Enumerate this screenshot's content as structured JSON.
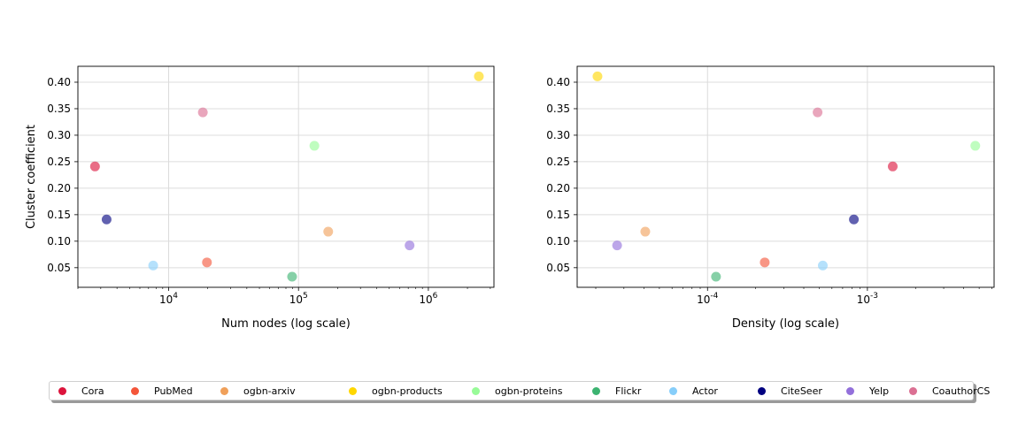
{
  "chart_data": [
    {
      "type": "scatter",
      "xlabel": "Num nodes (log scale)",
      "ylabel": "Cluster coefficient",
      "xscale": "log",
      "xlim": [
        2000,
        3200000
      ],
      "ylim": [
        0.013,
        0.43
      ],
      "xticks": [
        {
          "value": 10000,
          "label": "10^4"
        },
        {
          "value": 100000,
          "label": "10^5"
        },
        {
          "value": 1000000,
          "label": "10^6"
        }
      ],
      "yticks": [
        0.05,
        0.1,
        0.15,
        0.2,
        0.25,
        0.3,
        0.35,
        0.4
      ],
      "grid": true,
      "points": [
        {
          "series": "Cora",
          "x": 2708,
          "y": 0.241
        },
        {
          "series": "PubMed",
          "x": 19717,
          "y": 0.06
        },
        {
          "series": "ogbn-arxiv",
          "x": 169343,
          "y": 0.118
        },
        {
          "series": "ogbn-products",
          "x": 2449029,
          "y": 0.411
        },
        {
          "series": "ogbn-proteins",
          "x": 132534,
          "y": 0.28
        },
        {
          "series": "Flickr",
          "x": 89250,
          "y": 0.033
        },
        {
          "series": "Actor",
          "x": 7600,
          "y": 0.054
        },
        {
          "series": "CiteSeer",
          "x": 3327,
          "y": 0.141
        },
        {
          "series": "Yelp",
          "x": 716847,
          "y": 0.092
        },
        {
          "series": "CoauthorCS",
          "x": 18333,
          "y": 0.343
        }
      ]
    },
    {
      "type": "scatter",
      "xlabel": "Density (log scale)",
      "ylabel": "",
      "xscale": "log",
      "xlim": [
        1.53e-05,
        0.0062
      ],
      "ylim": [
        0.013,
        0.43
      ],
      "xticks": [
        {
          "value": 0.0001,
          "label": "10^-4"
        },
        {
          "value": 0.001,
          "label": "10^-3"
        }
      ],
      "yticks": [
        0.05,
        0.1,
        0.15,
        0.2,
        0.25,
        0.3,
        0.35,
        0.4
      ],
      "grid": true,
      "points": [
        {
          "series": "Cora",
          "x": 0.00144,
          "y": 0.241
        },
        {
          "series": "PubMed",
          "x": 0.000228,
          "y": 0.06
        },
        {
          "series": "ogbn-arxiv",
          "x": 4.08e-05,
          "y": 0.118
        },
        {
          "series": "ogbn-products",
          "x": 2.05e-05,
          "y": 0.411
        },
        {
          "series": "ogbn-proteins",
          "x": 0.00473,
          "y": 0.28
        },
        {
          "series": "Flickr",
          "x": 0.000113,
          "y": 0.033
        },
        {
          "series": "Actor",
          "x": 0.000526,
          "y": 0.054
        },
        {
          "series": "CiteSeer",
          "x": 0.000823,
          "y": 0.141
        },
        {
          "series": "Yelp",
          "x": 2.72e-05,
          "y": 0.092
        },
        {
          "series": "CoauthorCS",
          "x": 0.000488,
          "y": 0.343
        }
      ]
    }
  ],
  "legend": {
    "placement": "bottom",
    "items": [
      {
        "name": "Cora",
        "color": "#dc143c"
      },
      {
        "name": "PubMed",
        "color": "#f4563a"
      },
      {
        "name": "ogbn-arxiv",
        "color": "#f0a05a"
      },
      {
        "name": "ogbn-products",
        "color": "#ffd700"
      },
      {
        "name": "ogbn-proteins",
        "color": "#98fb98"
      },
      {
        "name": "Flickr",
        "color": "#3cb371"
      },
      {
        "name": "Actor",
        "color": "#87cefa"
      },
      {
        "name": "CiteSeer",
        "color": "#000080"
      },
      {
        "name": "Yelp",
        "color": "#9370db"
      },
      {
        "name": "CoauthorCS",
        "color": "#db7093"
      }
    ]
  }
}
